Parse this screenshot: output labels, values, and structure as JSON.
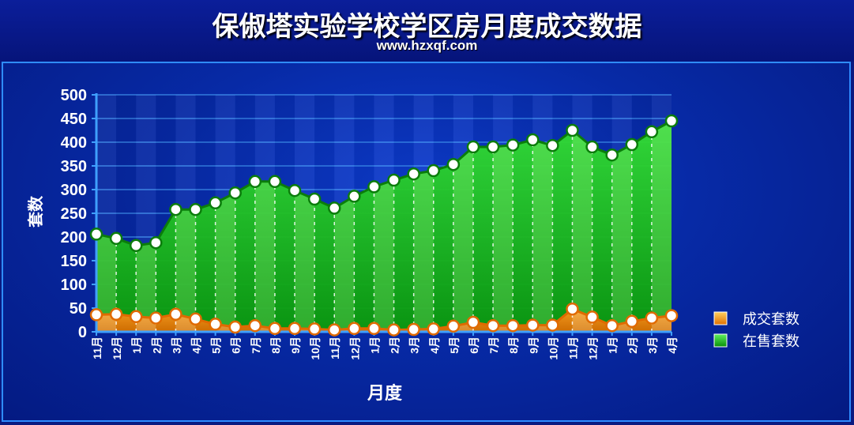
{
  "header": {
    "title": "保俶塔实验学校学区房月度成交数据",
    "subtitle": "www.hzxqf.com"
  },
  "chart_data": {
    "type": "area",
    "title": "保俶塔实验学校学区房月度成交数据",
    "subtitle": "www.hzxqf.com",
    "xlabel": "月度",
    "ylabel": "套数",
    "ylim": [
      0,
      500
    ],
    "yticks": [
      0,
      50,
      100,
      150,
      200,
      250,
      300,
      350,
      400,
      450,
      500
    ],
    "grid": true,
    "legend_position": "right",
    "categories": [
      "11月",
      "12月",
      "1月",
      "2月",
      "3月",
      "4月",
      "5月",
      "6月",
      "7月",
      "8月",
      "9月",
      "10月",
      "11月",
      "12月",
      "1月",
      "2月",
      "3月",
      "4月",
      "5月",
      "6月",
      "7月",
      "8月",
      "9月",
      "10月",
      "11月",
      "12月",
      "1月",
      "2月",
      "3月",
      "4月"
    ],
    "series": [
      {
        "name": "成交套数",
        "color": "#f07c10",
        "values": [
          36,
          37,
          32,
          29,
          37,
          27,
          16,
          10,
          13,
          7,
          7,
          6,
          4,
          7,
          7,
          4,
          5,
          6,
          12,
          20,
          13,
          13,
          14,
          14,
          48,
          31,
          13,
          22,
          29,
          34
        ]
      },
      {
        "name": "在售套数",
        "color": "#18c818",
        "values": [
          206,
          197,
          182,
          188,
          258,
          258,
          272,
          293,
          317,
          317,
          298,
          280,
          261,
          286,
          306,
          320,
          333,
          340,
          353,
          390,
          390,
          394,
          405,
          393,
          425,
          390,
          373,
          395,
          422,
          445
        ]
      }
    ]
  }
}
